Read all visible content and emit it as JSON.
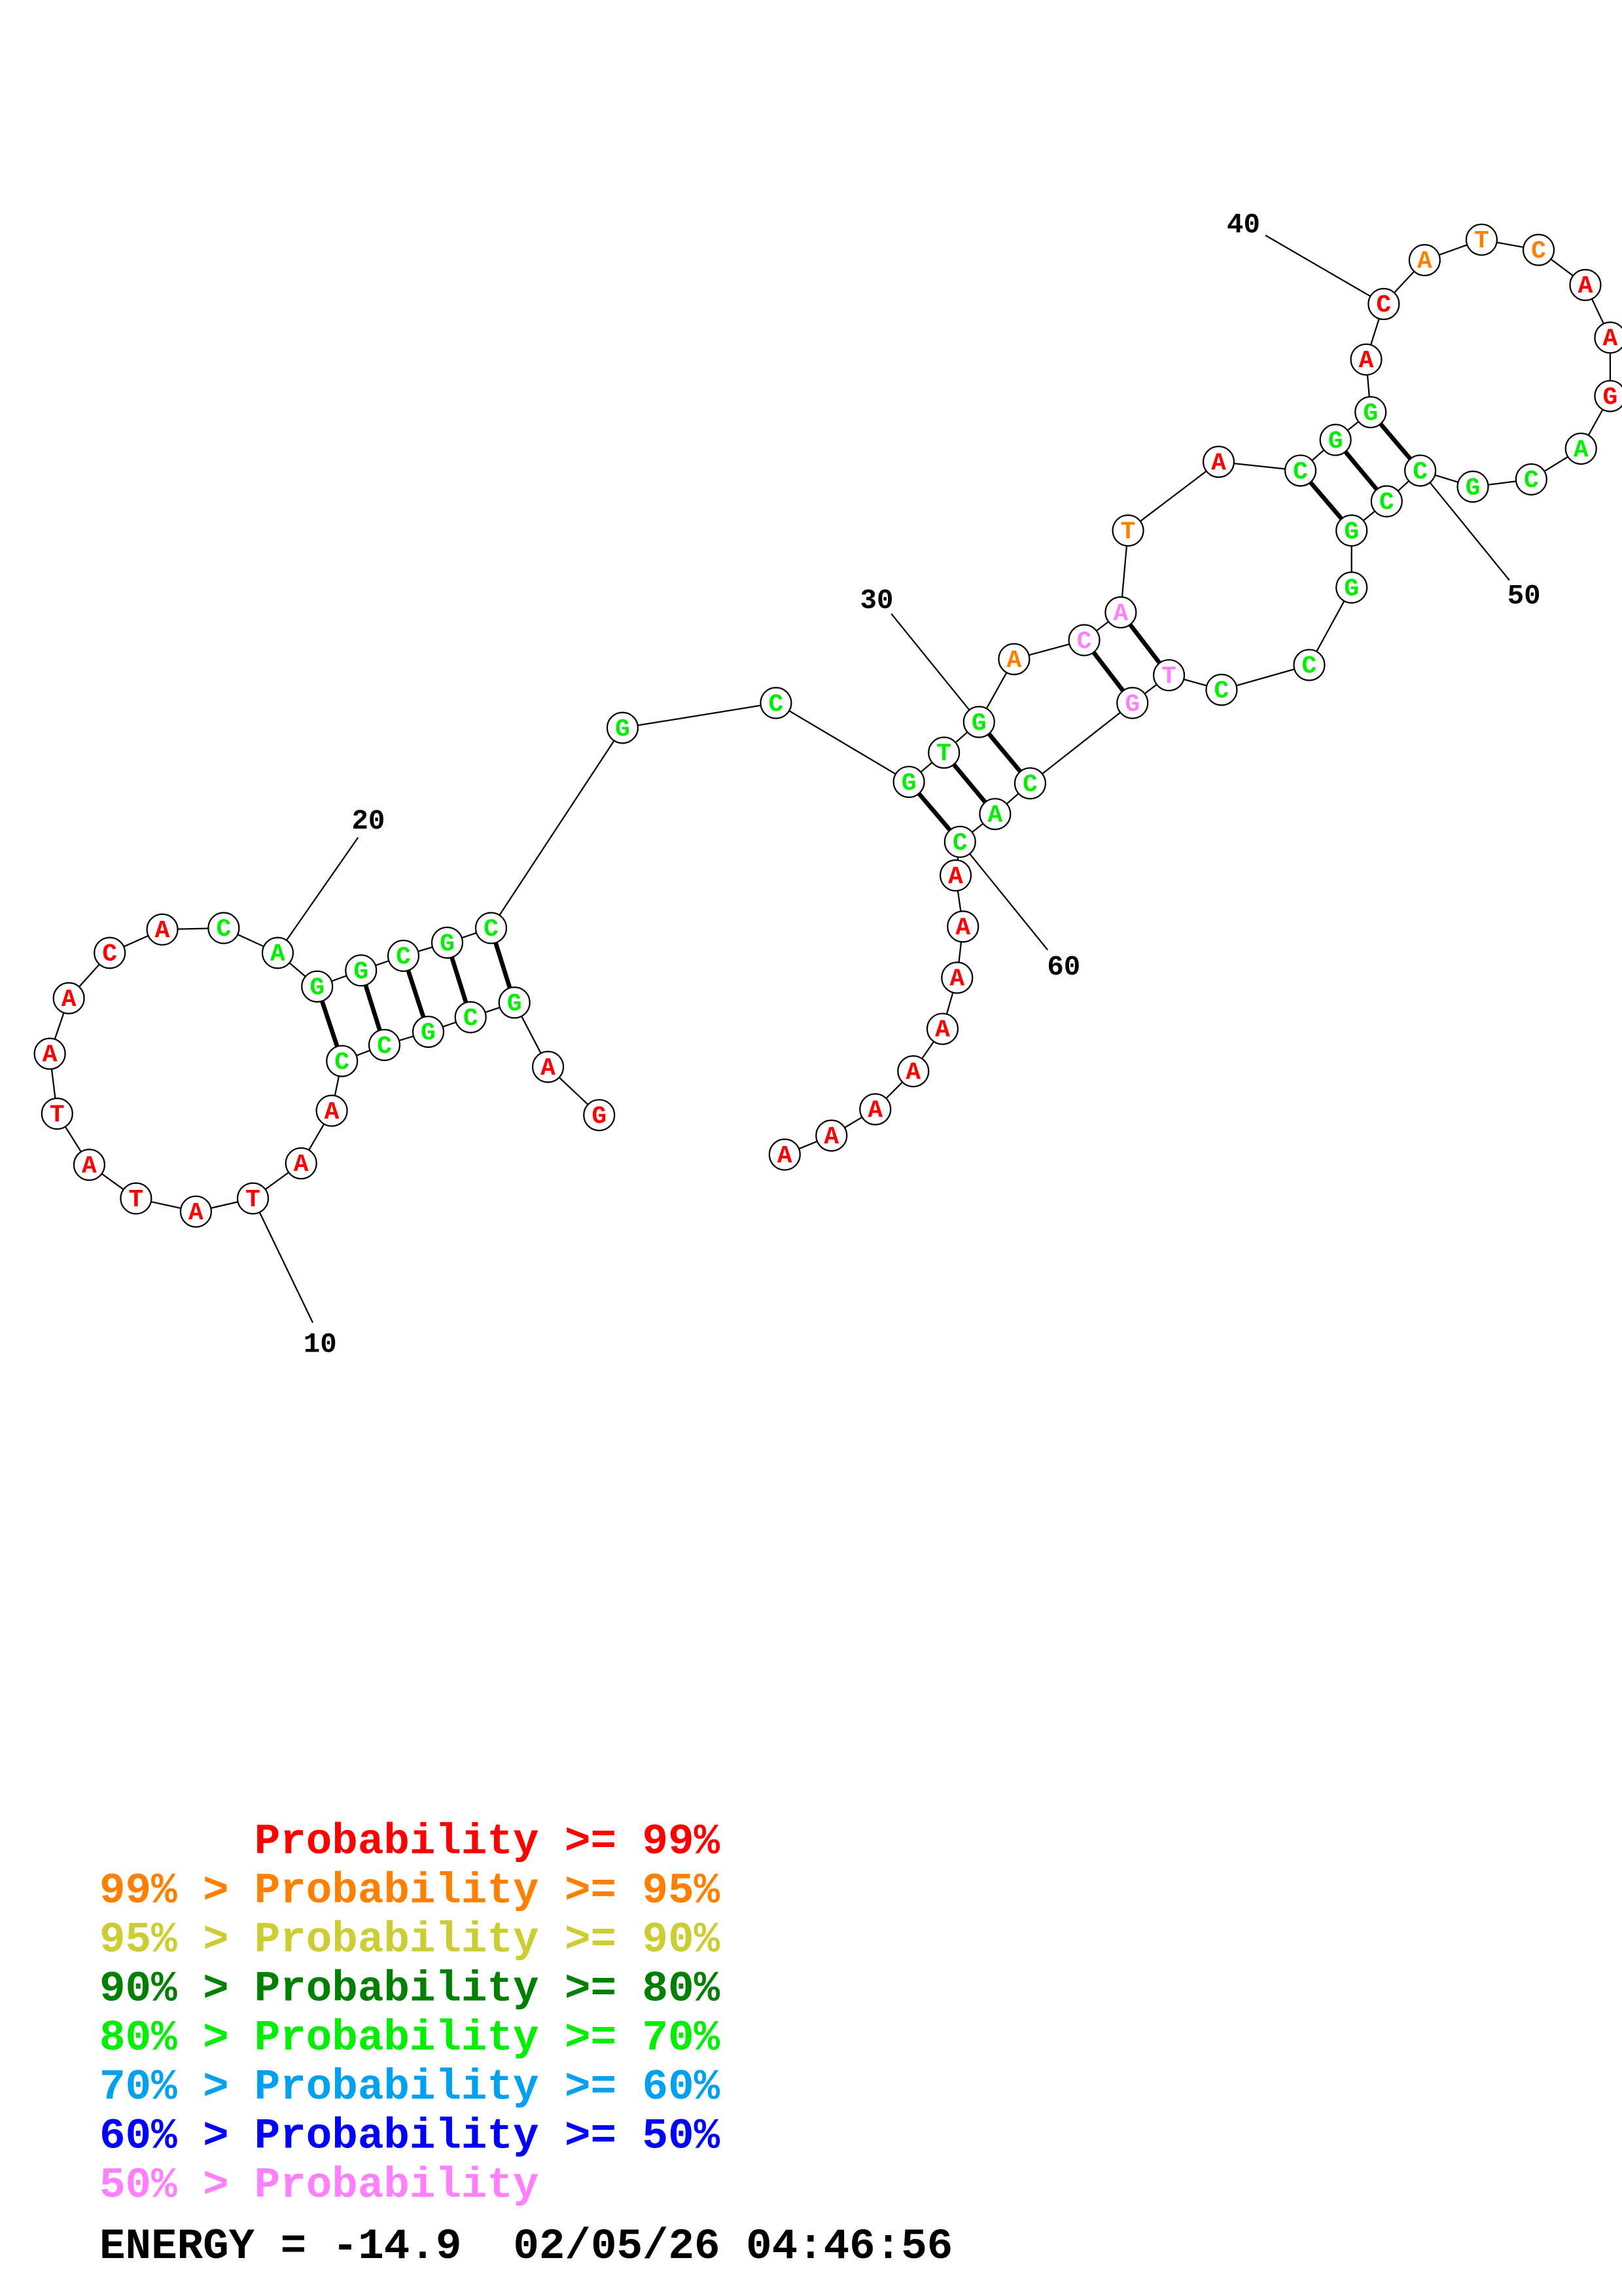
{
  "nodes": [
    {
      "base": "G",
      "color": "#ff0000"
    },
    {
      "base": "A",
      "color": "#ff0000"
    },
    {
      "base": "G",
      "color": "#00ee00"
    },
    {
      "base": "C",
      "color": "#00ee00"
    },
    {
      "base": "G",
      "color": "#00ee00"
    },
    {
      "base": "C",
      "color": "#00ee00"
    },
    {
      "base": "C",
      "color": "#00ee00"
    },
    {
      "base": "A",
      "color": "#ff0000"
    },
    {
      "base": "A",
      "color": "#ff0000"
    },
    {
      "base": "T",
      "color": "#ff0000"
    },
    {
      "base": "A",
      "color": "#ff0000"
    },
    {
      "base": "T",
      "color": "#ff0000"
    },
    {
      "base": "A",
      "color": "#ff0000"
    },
    {
      "base": "T",
      "color": "#ff0000"
    },
    {
      "base": "A",
      "color": "#ff0000"
    },
    {
      "base": "A",
      "color": "#ff0000"
    },
    {
      "base": "C",
      "color": "#ff0000"
    },
    {
      "base": "A",
      "color": "#ff0000"
    },
    {
      "base": "C",
      "color": "#00ee00"
    },
    {
      "base": "A",
      "color": "#00ee00"
    },
    {
      "base": "G",
      "color": "#00ee00"
    },
    {
      "base": "G",
      "color": "#00ee00"
    },
    {
      "base": "C",
      "color": "#00ee00"
    },
    {
      "base": "G",
      "color": "#00ee00"
    },
    {
      "base": "C",
      "color": "#00ee00"
    },
    {
      "base": "G",
      "color": "#00ee00"
    },
    {
      "base": "C",
      "color": "#00ee00"
    },
    {
      "base": "G",
      "color": "#00ee00"
    },
    {
      "base": "T",
      "color": "#00ee00"
    },
    {
      "base": "G",
      "color": "#00ee00"
    },
    {
      "base": "A",
      "color": "#ff8000"
    },
    {
      "base": "C",
      "color": "#ff80ff"
    },
    {
      "base": "A",
      "color": "#ff80ff"
    },
    {
      "base": "T",
      "color": "#ff8000"
    },
    {
      "base": "A",
      "color": "#ff0000"
    },
    {
      "base": "C",
      "color": "#00ee00"
    },
    {
      "base": "G",
      "color": "#00ee00"
    },
    {
      "base": "G",
      "color": "#00ee00"
    },
    {
      "base": "A",
      "color": "#ff0000"
    },
    {
      "base": "C",
      "color": "#ff0000"
    },
    {
      "base": "A",
      "color": "#ff8000"
    },
    {
      "base": "T",
      "color": "#ff8000"
    },
    {
      "base": "C",
      "color": "#ff8000"
    },
    {
      "base": "A",
      "color": "#ff0000"
    },
    {
      "base": "A",
      "color": "#ff0000"
    },
    {
      "base": "G",
      "color": "#ff0000"
    },
    {
      "base": "A",
      "color": "#00ee00"
    },
    {
      "base": "C",
      "color": "#00ee00"
    },
    {
      "base": "G",
      "color": "#00ee00"
    },
    {
      "base": "C",
      "color": "#00ee00"
    },
    {
      "base": "C",
      "color": "#00ee00"
    },
    {
      "base": "G",
      "color": "#00ee00"
    },
    {
      "base": "G",
      "color": "#00ee00"
    },
    {
      "base": "C",
      "color": "#00ee00"
    },
    {
      "base": "C",
      "color": "#00ee00"
    },
    {
      "base": "T",
      "color": "#ff80ff"
    },
    {
      "base": "G",
      "color": "#ff80ff"
    },
    {
      "base": "C",
      "color": "#00ee00"
    },
    {
      "base": "A",
      "color": "#00ee00"
    },
    {
      "base": "C",
      "color": "#00ee00"
    },
    {
      "base": "A",
      "color": "#ff0000"
    },
    {
      "base": "A",
      "color": "#ff0000"
    },
    {
      "base": "A",
      "color": "#ff0000"
    },
    {
      "base": "A",
      "color": "#ff0000"
    },
    {
      "base": "A",
      "color": "#ff0000"
    },
    {
      "base": "A",
      "color": "#ff0000"
    },
    {
      "base": "A",
      "color": "#ff0000"
    },
    {
      "base": "A",
      "color": "#ff0000"
    }
  ],
  "position_labels": [
    10,
    20,
    30,
    40,
    50,
    60
  ],
  "legend": [
    {
      "text": "Probability >= 99%",
      "color": "#ff0000"
    },
    {
      "prefix": "99% >",
      "text": "Probability >= 95%",
      "color": "#ff8000"
    },
    {
      "prefix": "95% >",
      "text": "Probability >= 90%",
      "color": "#cccc33"
    },
    {
      "prefix": "90% >",
      "text": "Probability >= 80%",
      "color": "#008000"
    },
    {
      "prefix": "80% >",
      "text": "Probability >= 70%",
      "color": "#00ee00"
    },
    {
      "prefix": "70% >",
      "text": "Probability >= 60%",
      "color": "#00a0f0"
    },
    {
      "prefix": "60% >",
      "text": "Probability >= 50%",
      "color": "#0000ff"
    },
    {
      "prefix": "50% >",
      "text": "Probability",
      "color": "#ff80ff"
    }
  ],
  "footer": "ENERGY = -14.9  02/05/26 04:46:56"
}
